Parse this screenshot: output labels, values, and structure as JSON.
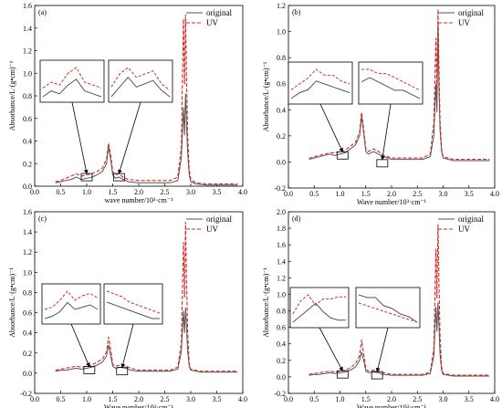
{
  "figure": {
    "colors": {
      "original": "#555555",
      "uv": "#d62728",
      "inset_box": "#000000"
    }
  },
  "chart_data": [
    {
      "type": "line",
      "panel_label": "(a)",
      "xlabel": "wave number/10³·cm⁻¹",
      "ylabel": "Absorbance/L·(g•cm)⁻¹",
      "xlim": [
        0.0,
        4.0
      ],
      "ylim": [
        0.0,
        1.6
      ],
      "xticks": [
        "0.0",
        "0.5",
        "1.0",
        "1.5",
        "2.0",
        "2.5",
        "3.0",
        "3.5",
        "4.0"
      ],
      "yticks": [
        "0.0",
        "0.2",
        "0.4",
        "0.6",
        "0.8",
        "1.0",
        "1.2",
        "1.4",
        "1.6"
      ],
      "legend": {
        "position": "top-right",
        "entries": [
          "original",
          "UV"
        ]
      },
      "series": [
        {
          "name": "original",
          "style": "solid",
          "x": [
            0.4,
            0.5,
            0.6,
            0.7,
            0.75,
            0.8,
            0.85,
            0.9,
            1.0,
            1.1,
            1.2,
            1.3,
            1.38,
            1.42,
            1.46,
            1.5,
            1.55,
            1.62,
            1.7,
            1.8,
            2.0,
            2.2,
            2.4,
            2.6,
            2.75,
            2.82,
            2.86,
            2.88,
            2.9,
            2.92,
            2.94,
            2.97,
            3.0,
            3.1,
            3.3,
            3.6,
            3.9
          ],
          "y": [
            0.03,
            0.04,
            0.05,
            0.06,
            0.07,
            0.08,
            0.07,
            0.06,
            0.07,
            0.08,
            0.1,
            0.13,
            0.2,
            0.35,
            0.24,
            0.1,
            0.07,
            0.08,
            0.06,
            0.04,
            0.03,
            0.03,
            0.03,
            0.03,
            0.05,
            0.25,
            0.7,
            0.45,
            0.82,
            0.55,
            0.3,
            0.1,
            0.04,
            0.02,
            0.01,
            0.01,
            0.01
          ]
        },
        {
          "name": "UV",
          "style": "dashed",
          "x": [
            0.4,
            0.5,
            0.6,
            0.7,
            0.75,
            0.8,
            0.85,
            0.9,
            1.0,
            1.1,
            1.2,
            1.3,
            1.38,
            1.42,
            1.46,
            1.5,
            1.55,
            1.62,
            1.7,
            1.8,
            2.0,
            2.2,
            2.4,
            2.6,
            2.75,
            2.82,
            2.86,
            2.88,
            2.9,
            2.92,
            2.94,
            2.97,
            3.0,
            3.1,
            3.3,
            3.6,
            3.9
          ],
          "y": [
            0.04,
            0.05,
            0.07,
            0.09,
            0.1,
            0.11,
            0.1,
            0.09,
            0.1,
            0.11,
            0.13,
            0.16,
            0.24,
            0.38,
            0.28,
            0.13,
            0.1,
            0.11,
            0.08,
            0.06,
            0.05,
            0.05,
            0.05,
            0.05,
            0.08,
            0.35,
            1.48,
            0.9,
            1.52,
            0.95,
            0.45,
            0.15,
            0.06,
            0.03,
            0.02,
            0.02,
            0.02
          ]
        }
      ],
      "insets": [
        {
          "target_x": 1.0,
          "target_y": 0.08,
          "x": [
            0.85,
            1.15
          ],
          "original": [
            0.1,
            0.12,
            0.11,
            0.14,
            0.16,
            0.12,
            0.11,
            0.1
          ],
          "uv": [
            0.13,
            0.15,
            0.14,
            0.18,
            0.2,
            0.15,
            0.14,
            0.13
          ]
        },
        {
          "target_x": 1.62,
          "target_y": 0.08,
          "x": [
            1.55,
            1.75
          ],
          "original": [
            0.09,
            0.12,
            0.15,
            0.12,
            0.13,
            0.14,
            0.11,
            0.09
          ],
          "uv": [
            0.12,
            0.16,
            0.18,
            0.15,
            0.16,
            0.17,
            0.13,
            0.11
          ]
        }
      ]
    },
    {
      "type": "line",
      "panel_label": "(b)",
      "xlabel": "Wave number/10³·cm⁻¹",
      "ylabel": "Absorbance/L·(g•cm)⁻¹",
      "xlim": [
        0.0,
        4.0
      ],
      "ylim": [
        -0.2,
        1.2
      ],
      "xticks": [
        "0.0",
        "0.5",
        "1.0",
        "1.5",
        "2.0",
        "2.5",
        "3.0",
        "3.5",
        "4.0"
      ],
      "yticks": [
        "-0.2",
        "0.0",
        "0.2",
        "0.4",
        "0.6",
        "0.8",
        "1.0",
        "1.2"
      ],
      "legend": {
        "position": "top-right",
        "entries": [
          "original",
          "UV"
        ]
      },
      "series": [
        {
          "name": "original",
          "style": "solid",
          "x": [
            0.4,
            0.5,
            0.6,
            0.7,
            0.8,
            0.9,
            1.0,
            1.1,
            1.2,
            1.3,
            1.38,
            1.42,
            1.46,
            1.5,
            1.55,
            1.65,
            1.75,
            1.85,
            2.0,
            2.3,
            2.6,
            2.75,
            2.82,
            2.86,
            2.88,
            2.9,
            2.92,
            2.94,
            2.97,
            3.0,
            3.2,
            3.6,
            3.9
          ],
          "y": [
            0.02,
            0.03,
            0.04,
            0.05,
            0.06,
            0.05,
            0.06,
            0.07,
            0.1,
            0.13,
            0.2,
            0.35,
            0.22,
            0.08,
            0.06,
            0.08,
            0.06,
            0.04,
            0.02,
            0.02,
            0.02,
            0.04,
            0.2,
            0.6,
            0.38,
            1.05,
            0.55,
            0.25,
            0.08,
            0.03,
            0.01,
            0.01,
            0.01
          ]
        },
        {
          "name": "UV",
          "style": "dashed",
          "x": [
            0.4,
            0.5,
            0.6,
            0.7,
            0.8,
            0.9,
            1.0,
            1.1,
            1.2,
            1.3,
            1.38,
            1.42,
            1.46,
            1.5,
            1.55,
            1.65,
            1.75,
            1.85,
            2.0,
            2.3,
            2.6,
            2.75,
            2.82,
            2.86,
            2.88,
            2.9,
            2.92,
            2.94,
            2.97,
            3.0,
            3.2,
            3.6,
            3.9
          ],
          "y": [
            0.03,
            0.04,
            0.05,
            0.06,
            0.07,
            0.07,
            0.08,
            0.09,
            0.12,
            0.15,
            0.23,
            0.38,
            0.25,
            0.1,
            0.08,
            0.1,
            0.08,
            0.05,
            0.03,
            0.03,
            0.03,
            0.06,
            0.3,
            0.95,
            0.55,
            1.17,
            0.7,
            0.32,
            0.1,
            0.04,
            0.02,
            0.02,
            0.02
          ]
        }
      ],
      "insets": [
        {
          "target_x": 1.05,
          "target_y": 0.05,
          "x": [
            0.95,
            1.15
          ],
          "original": [
            0.1,
            0.12,
            0.13,
            0.16,
            0.15,
            0.14,
            0.13,
            0.12
          ],
          "uv": [
            0.13,
            0.15,
            0.17,
            0.2,
            0.18,
            0.18,
            0.16,
            0.15
          ]
        },
        {
          "target_x": 1.82,
          "target_y": -0.01,
          "x": [
            1.72,
            1.92
          ],
          "original": [
            0.14,
            0.15,
            0.14,
            0.13,
            0.12,
            0.12,
            0.11,
            0.1
          ],
          "uv": [
            0.17,
            0.17,
            0.16,
            0.16,
            0.15,
            0.14,
            0.13,
            0.12
          ]
        }
      ]
    },
    {
      "type": "line",
      "panel_label": "(c)",
      "xlabel": "Wave number/10³·cm⁻¹",
      "ylabel": "Absorbance/L·(g•cm)⁻¹",
      "xlim": [
        0.0,
        4.0
      ],
      "ylim": [
        -0.2,
        1.6
      ],
      "xticks": [
        "0.0",
        "0.5",
        "1.0",
        "1.5",
        "2.0",
        "2.5",
        "3.0",
        "3.5",
        "4.0"
      ],
      "yticks": [
        "-0.2",
        "0.0",
        "0.2",
        "0.4",
        "0.6",
        "0.8",
        "1.0",
        "1.2",
        "1.4",
        "1.6"
      ],
      "legend": {
        "position": "top-right",
        "entries": [
          "original",
          "UV"
        ]
      },
      "series": [
        {
          "name": "original",
          "style": "solid",
          "x": [
            0.4,
            0.5,
            0.6,
            0.7,
            0.8,
            0.9,
            1.0,
            1.1,
            1.2,
            1.3,
            1.38,
            1.42,
            1.46,
            1.5,
            1.55,
            1.65,
            1.75,
            1.85,
            2.0,
            2.3,
            2.6,
            2.75,
            2.82,
            2.86,
            2.88,
            2.9,
            2.92,
            2.94,
            2.97,
            3.0,
            3.2,
            3.6,
            3.9
          ],
          "y": [
            0.02,
            0.03,
            0.03,
            0.04,
            0.05,
            0.04,
            0.05,
            0.06,
            0.08,
            0.11,
            0.17,
            0.28,
            0.18,
            0.07,
            0.05,
            0.06,
            0.05,
            0.03,
            0.02,
            0.02,
            0.02,
            0.04,
            0.22,
            0.62,
            0.4,
            0.65,
            0.45,
            0.22,
            0.07,
            0.03,
            0.01,
            0.01,
            0.01
          ]
        },
        {
          "name": "UV",
          "style": "dashed",
          "x": [
            0.4,
            0.5,
            0.6,
            0.7,
            0.8,
            0.9,
            1.0,
            1.1,
            1.2,
            1.3,
            1.38,
            1.42,
            1.46,
            1.5,
            1.55,
            1.65,
            1.75,
            1.85,
            2.0,
            2.3,
            2.6,
            2.75,
            2.82,
            2.86,
            2.88,
            2.9,
            2.92,
            2.94,
            2.97,
            3.0,
            3.2,
            3.6,
            3.9
          ],
          "y": [
            0.03,
            0.04,
            0.05,
            0.06,
            0.07,
            0.06,
            0.07,
            0.08,
            0.11,
            0.14,
            0.21,
            0.36,
            0.24,
            0.09,
            0.07,
            0.08,
            0.07,
            0.05,
            0.03,
            0.03,
            0.03,
            0.06,
            0.3,
            1.3,
            0.75,
            1.5,
            0.9,
            0.4,
            0.1,
            0.04,
            0.02,
            0.02,
            0.02
          ]
        }
      ],
      "insets": [
        {
          "target_x": 1.05,
          "target_y": 0.03,
          "x": [
            0.95,
            1.15
          ],
          "original": [
            0.09,
            0.1,
            0.12,
            0.16,
            0.13,
            0.14,
            0.15,
            0.13
          ],
          "uv": [
            0.13,
            0.14,
            0.17,
            0.21,
            0.17,
            0.19,
            0.2,
            0.18
          ]
        },
        {
          "target_x": 1.68,
          "target_y": 0.02,
          "x": [
            1.6,
            1.78
          ],
          "original": [
            0.15,
            0.14,
            0.13,
            0.12,
            0.11,
            0.1,
            0.09,
            0.09
          ],
          "uv": [
            0.19,
            0.18,
            0.17,
            0.15,
            0.14,
            0.13,
            0.12,
            0.11
          ]
        }
      ]
    },
    {
      "type": "line",
      "panel_label": "(d)",
      "xlabel": "Wave number/10³·cm⁻¹",
      "ylabel": "Absorbance/L·(g•cm)⁻¹",
      "xlim": [
        0.0,
        4.0
      ],
      "ylim": [
        -0.2,
        2.0
      ],
      "xticks": [
        "0.0",
        "0.5",
        "1.0",
        "1.5",
        "2.0",
        "2.5",
        "3.0",
        "3.5",
        "4.0"
      ],
      "yticks": [
        "-0.2",
        "0.0",
        "0.2",
        "0.4",
        "0.6",
        "0.8",
        "1.0",
        "1.2",
        "1.4",
        "1.6",
        "1.8",
        "2.0"
      ],
      "legend": {
        "position": "top-right",
        "entries": [
          "original",
          "UV"
        ]
      },
      "series": [
        {
          "name": "original",
          "style": "solid",
          "x": [
            0.4,
            0.5,
            0.6,
            0.7,
            0.8,
            0.9,
            1.0,
            1.1,
            1.2,
            1.3,
            1.38,
            1.42,
            1.46,
            1.5,
            1.55,
            1.65,
            1.75,
            1.85,
            2.0,
            2.3,
            2.6,
            2.75,
            2.82,
            2.86,
            2.88,
            2.9,
            2.92,
            2.94,
            2.97,
            3.0,
            3.2,
            3.6,
            3.9
          ],
          "y": [
            0.02,
            0.03,
            0.03,
            0.04,
            0.05,
            0.04,
            0.05,
            0.06,
            0.08,
            0.12,
            0.2,
            0.3,
            0.2,
            0.07,
            0.05,
            0.06,
            0.05,
            0.03,
            0.02,
            0.02,
            0.02,
            0.04,
            0.25,
            0.85,
            0.55,
            0.9,
            0.6,
            0.28,
            0.08,
            0.03,
            0.01,
            0.01,
            0.01
          ]
        },
        {
          "name": "UV",
          "style": "dashed",
          "x": [
            0.4,
            0.5,
            0.6,
            0.7,
            0.8,
            0.9,
            1.0,
            1.1,
            1.2,
            1.3,
            1.38,
            1.42,
            1.46,
            1.5,
            1.55,
            1.65,
            1.75,
            1.85,
            2.0,
            2.3,
            2.6,
            2.75,
            2.82,
            2.86,
            2.88,
            2.9,
            2.92,
            2.94,
            2.97,
            3.0,
            3.2,
            3.6,
            3.9
          ],
          "y": [
            0.03,
            0.04,
            0.05,
            0.06,
            0.07,
            0.06,
            0.07,
            0.08,
            0.11,
            0.16,
            0.26,
            0.45,
            0.28,
            0.1,
            0.07,
            0.08,
            0.07,
            0.05,
            0.03,
            0.03,
            0.03,
            0.06,
            0.35,
            1.55,
            0.95,
            1.85,
            1.1,
            0.5,
            0.12,
            0.04,
            0.02,
            0.02,
            0.02
          ]
        }
      ],
      "insets": [
        {
          "target_x": 1.05,
          "target_y": 0.03,
          "x": [
            0.95,
            1.15
          ],
          "original": [
            0.1,
            0.13,
            0.16,
            0.19,
            0.15,
            0.12,
            0.11,
            0.11
          ],
          "uv": [
            0.14,
            0.2,
            0.23,
            0.18,
            0.21,
            0.21,
            0.22,
            0.22
          ]
        },
        {
          "target_x": 1.72,
          "target_y": 0.02,
          "x": [
            1.65,
            1.8
          ],
          "original": [
            0.2,
            0.19,
            0.19,
            0.16,
            0.15,
            0.13,
            0.12,
            0.1
          ],
          "uv": [
            0.17,
            0.16,
            0.15,
            0.14,
            0.13,
            0.12,
            0.11,
            0.1
          ]
        }
      ]
    }
  ]
}
